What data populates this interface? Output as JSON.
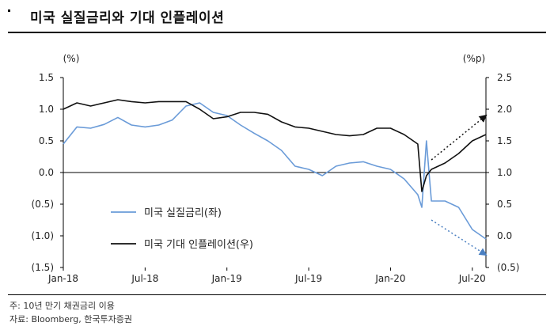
{
  "header": {
    "title": "미국 실질금리와 기대 인플레이션"
  },
  "footnotes": {
    "note": "주: 10년 만기 채권금리 이용",
    "source": "자료: Bloomberg, 한국투자증권"
  },
  "chart_data": {
    "type": "line",
    "title": "미국 실질금리와 기대 인플레이션",
    "left_axis": {
      "unit": "(%)",
      "min": -1.5,
      "max": 1.5,
      "ticks": [
        1.5,
        1.0,
        0.5,
        0.0,
        -0.5,
        -1.0,
        -1.5
      ],
      "tick_labels": [
        "1.5",
        "1.0",
        "0.5",
        "0.0",
        "(0.5)",
        "(1.0)",
        "(1.5)"
      ]
    },
    "right_axis": {
      "unit": "(%p)",
      "min": -0.5,
      "max": 2.5,
      "ticks": [
        2.5,
        2.0,
        1.5,
        1.0,
        0.5,
        0.0,
        -0.5
      ],
      "tick_labels": [
        "2.5",
        "2.0",
        "1.5",
        "1.0",
        "0.5",
        "0.0",
        "(0.5)"
      ]
    },
    "x_range": [
      "2018-01",
      "2020-08"
    ],
    "x_tick_labels": [
      "Jan-18",
      "Jul-18",
      "Jan-19",
      "Jul-19",
      "Jan-20",
      "Jul-20"
    ],
    "x_ticks": [
      "2018-01",
      "2018-07",
      "2019-01",
      "2019-07",
      "2020-01",
      "2020-07"
    ],
    "series": [
      {
        "name": "미국 실질금리(좌)",
        "axis": "left",
        "color": "#6a9bd8",
        "points": [
          [
            "2018-01",
            0.45
          ],
          [
            "2018-02",
            0.72
          ],
          [
            "2018-03",
            0.7
          ],
          [
            "2018-04",
            0.76
          ],
          [
            "2018-05",
            0.87
          ],
          [
            "2018-06",
            0.75
          ],
          [
            "2018-07",
            0.72
          ],
          [
            "2018-08",
            0.75
          ],
          [
            "2018-09",
            0.83
          ],
          [
            "2018-10",
            1.05
          ],
          [
            "2018-11",
            1.1
          ],
          [
            "2018-12",
            0.95
          ],
          [
            "2019-01",
            0.9
          ],
          [
            "2019-02",
            0.75
          ],
          [
            "2019-03",
            0.62
          ],
          [
            "2019-04",
            0.5
          ],
          [
            "2019-05",
            0.35
          ],
          [
            "2019-06",
            0.1
          ],
          [
            "2019-07",
            0.05
          ],
          [
            "2019-08",
            -0.05
          ],
          [
            "2019-09",
            0.1
          ],
          [
            "2019-10",
            0.15
          ],
          [
            "2019-11",
            0.17
          ],
          [
            "2019-12",
            0.1
          ],
          [
            "2020-01",
            0.05
          ],
          [
            "2020-02",
            -0.1
          ],
          [
            "2020-03",
            -0.35
          ],
          [
            "2020-03-10",
            -0.55
          ],
          [
            "2020-03-20",
            0.5
          ],
          [
            "2020-04",
            -0.45
          ],
          [
            "2020-05",
            -0.45
          ],
          [
            "2020-06",
            -0.55
          ],
          [
            "2020-07",
            -0.9
          ],
          [
            "2020-08",
            -1.05
          ]
        ]
      },
      {
        "name": "미국 기대 인플레이션(우)",
        "axis": "right",
        "color": "#111111",
        "points": [
          [
            "2018-01",
            2.0
          ],
          [
            "2018-02",
            2.1
          ],
          [
            "2018-03",
            2.05
          ],
          [
            "2018-04",
            2.1
          ],
          [
            "2018-05",
            2.15
          ],
          [
            "2018-06",
            2.12
          ],
          [
            "2018-07",
            2.1
          ],
          [
            "2018-08",
            2.12
          ],
          [
            "2018-09",
            2.12
          ],
          [
            "2018-10",
            2.12
          ],
          [
            "2018-11",
            2.0
          ],
          [
            "2018-12",
            1.85
          ],
          [
            "2019-01",
            1.88
          ],
          [
            "2019-02",
            1.95
          ],
          [
            "2019-03",
            1.95
          ],
          [
            "2019-04",
            1.92
          ],
          [
            "2019-05",
            1.8
          ],
          [
            "2019-06",
            1.72
          ],
          [
            "2019-07",
            1.7
          ],
          [
            "2019-08",
            1.65
          ],
          [
            "2019-09",
            1.6
          ],
          [
            "2019-10",
            1.58
          ],
          [
            "2019-11",
            1.6
          ],
          [
            "2019-12",
            1.7
          ],
          [
            "2020-01",
            1.7
          ],
          [
            "2020-02",
            1.6
          ],
          [
            "2020-03",
            1.45
          ],
          [
            "2020-03-10",
            0.7
          ],
          [
            "2020-03-20",
            0.95
          ],
          [
            "2020-04",
            1.05
          ],
          [
            "2020-05",
            1.15
          ],
          [
            "2020-06",
            1.3
          ],
          [
            "2020-07",
            1.5
          ],
          [
            "2020-08",
            1.6
          ]
        ]
      }
    ],
    "trend_arrows": [
      {
        "axis": "right",
        "from": [
          "2020-04",
          1.2
        ],
        "to": [
          "2020-08",
          1.9
        ],
        "color": "#111111"
      },
      {
        "axis": "left",
        "from": [
          "2020-04",
          -0.75
        ],
        "to": [
          "2020-08",
          -1.3
        ],
        "color": "#4a7fc1"
      }
    ],
    "grid": false,
    "legend": {
      "position": "bottom-center",
      "entries": [
        "미국 실질금리(좌)",
        "미국 기대 인플레이션(우)"
      ]
    }
  }
}
